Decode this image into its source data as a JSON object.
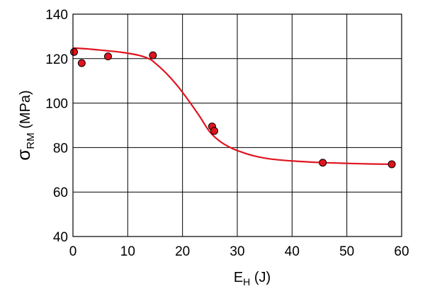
{
  "chart_data": {
    "type": "scatter",
    "x_axis": {
      "label_main": "E",
      "label_sub": "H",
      "label_unit": " (J)",
      "range": [
        0,
        60
      ],
      "ticks": [
        0,
        10,
        20,
        30,
        40,
        50,
        60
      ],
      "tick_labels": [
        "0",
        "10",
        "20",
        "30",
        "40",
        "50",
        "60"
      ]
    },
    "y_axis": {
      "label_main": "σ",
      "label_sub": "RM",
      "label_unit": " (MPa)",
      "range": [
        40,
        140
      ],
      "ticks": [
        40,
        60,
        80,
        100,
        120,
        140
      ],
      "tick_labels": [
        "40",
        "60",
        "80",
        "100",
        "120",
        "140"
      ]
    },
    "grid": true,
    "series": [
      {
        "kind": "points",
        "color": "#e0141e",
        "x": [
          0.2,
          1.6,
          6.4,
          14.6,
          25.4,
          25.8,
          45.6,
          58.2
        ],
        "y": [
          123.0,
          118.0,
          121.0,
          121.5,
          89.5,
          87.5,
          73.2,
          72.5
        ]
      },
      {
        "kind": "fit-curve",
        "color": "#e0141e",
        "x": [
          0,
          3,
          6,
          9,
          12,
          14,
          15,
          17,
          19,
          21,
          23,
          25,
          27,
          29,
          31,
          33,
          36,
          40,
          45,
          50,
          55,
          58
        ],
        "y": [
          124.8,
          124.3,
          123.6,
          122.8,
          121.5,
          119.8,
          118.0,
          113.5,
          108.0,
          101.5,
          94.5,
          87.0,
          82.5,
          79.7,
          77.8,
          76.3,
          74.9,
          74.0,
          73.3,
          72.9,
          72.6,
          72.5
        ]
      }
    ]
  }
}
